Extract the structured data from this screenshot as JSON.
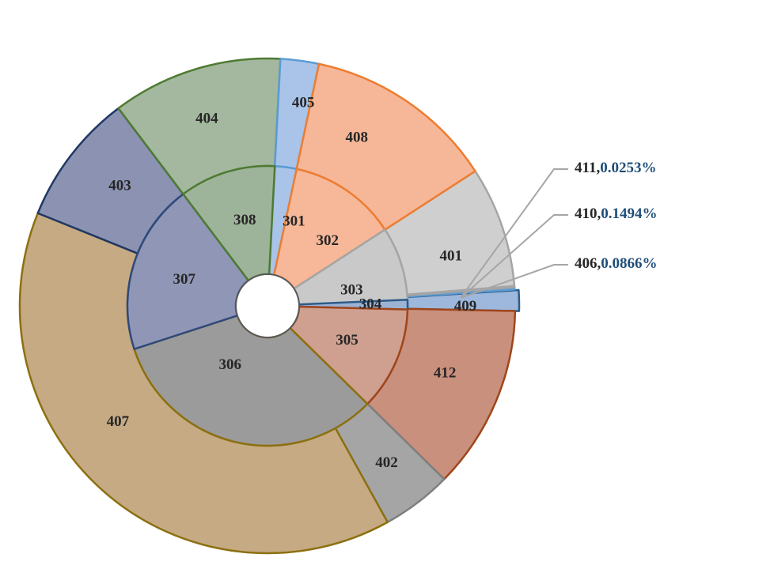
{
  "chart_data": {
    "type": "sunburst",
    "title": "",
    "inner": [
      {
        "label": "301",
        "fill": "#A9C4E8",
        "stroke": "#5B9BD5"
      },
      {
        "label": "302",
        "fill": "#F6B899",
        "stroke": "#ED7D31"
      },
      {
        "label": "303",
        "fill": "#C9C9C9",
        "stroke": "#A5A5A5"
      },
      {
        "label": "304",
        "fill": "#9DB3D4",
        "stroke": "#2E5C8A"
      },
      {
        "label": "305",
        "fill": "#CFA090",
        "stroke": "#A0461B"
      },
      {
        "label": "306",
        "fill": "#9B9B9B",
        "stroke": "#8C7010"
      },
      {
        "label": "307",
        "fill": "#9096B5",
        "stroke": "#2F4A7A"
      },
      {
        "label": "308",
        "fill": "#9EB49A",
        "stroke": "#4E7A32"
      }
    ],
    "outer": [
      {
        "label": "401",
        "fill": "#CFCFCF",
        "stroke": "#A5A5A5"
      },
      {
        "label": "409",
        "fill": "#9DB8DC",
        "stroke": "#2E5C8A"
      },
      {
        "label": "411",
        "value_label": "0.0253%",
        "fill": "#F5D071",
        "stroke": "#BF9000"
      },
      {
        "label": "410",
        "value_label": "0.1494%",
        "fill": "#B6CDEA",
        "stroke": "#5B9BD5"
      },
      {
        "label": "406",
        "value_label": "0.0866%",
        "fill": "#C9C9C9",
        "stroke": "#A5A5A5"
      },
      {
        "label": "412",
        "fill": "#C9907E",
        "stroke": "#A0461B"
      },
      {
        "label": "402",
        "fill": "#A5A5A5",
        "stroke": "#7F7F7F"
      },
      {
        "label": "407",
        "fill": "#C6AA84",
        "stroke": "#8C7010"
      },
      {
        "label": "403",
        "fill": "#8C92B2",
        "stroke": "#203864"
      },
      {
        "label": "404",
        "fill": "#A3B89E",
        "stroke": "#4E7A32"
      },
      {
        "label": "405",
        "fill": "#A9C4E8",
        "stroke": "#5B9BD5"
      },
      {
        "label": "408",
        "fill": "#F6B799",
        "stroke": "#ED7D31"
      }
    ]
  }
}
